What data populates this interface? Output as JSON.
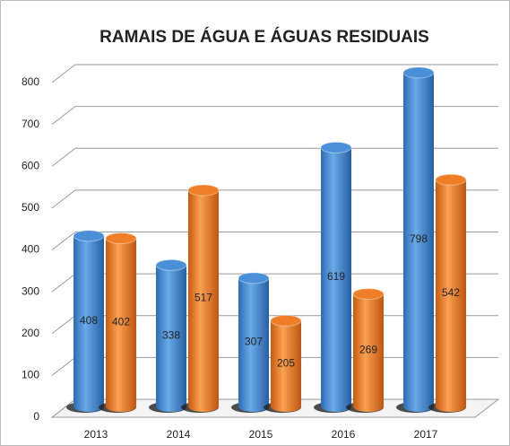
{
  "chart_data": {
    "type": "bar3d",
    "title": "RAMAIS DE ÁGUA E ÁGUAS RESIDUAIS",
    "categories": [
      "2013",
      "2014",
      "2015",
      "2016",
      "2017"
    ],
    "series": [
      {
        "color": "#4a90d9",
        "values": [
          408,
          338,
          307,
          619,
          798
        ]
      },
      {
        "color": "#f07e26",
        "values": [
          402,
          517,
          205,
          269,
          542
        ]
      }
    ],
    "ylim": [
      0,
      800
    ],
    "yticks": [
      0,
      100,
      200,
      300,
      400,
      500,
      600,
      700,
      800
    ],
    "grid": true
  }
}
